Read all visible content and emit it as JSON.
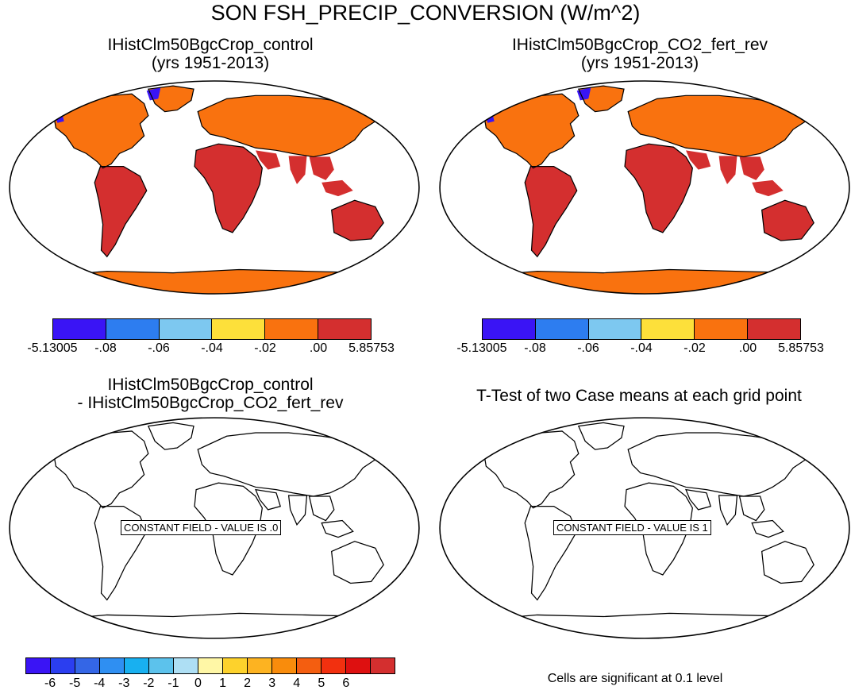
{
  "figure": {
    "title": "SON FSH_PRECIP_CONVERSION (W/m^2)"
  },
  "panels": [
    {
      "title_line1": "IHistClm50BgcCrop_control",
      "title_line2": "(yrs 1951-2013)"
    },
    {
      "title_line1": "IHistClm50BgcCrop_CO2_fert_rev",
      "title_line2": "(yrs 1951-2013)"
    },
    {
      "title_line1": "IHistClm50BgcCrop_control",
      "title_line2": "- IHistClm50BgcCrop_CO2_fert_rev",
      "overlay": "CONSTANT FIELD - VALUE IS .0"
    },
    {
      "title_line1": "T-Test of two Case means at each grid point",
      "title_line2": "",
      "overlay": "CONSTANT FIELD - VALUE IS 1"
    }
  ],
  "colorbar_case": {
    "colors": [
      "#3a14f5",
      "#2d7df0",
      "#7dc8f0",
      "#fde03a",
      "#f9720f",
      "#d42f2f"
    ],
    "labels": [
      "-5.13005",
      "-.08",
      "-.06",
      "-.04",
      "-.02",
      ".00",
      "5.85753"
    ]
  },
  "colorbar_diff": {
    "colors": [
      "#3a14f5",
      "#2b3ef0",
      "#3466e6",
      "#2f8ff2",
      "#18b0f0",
      "#5cc2ec",
      "#aedff4",
      "#fff7a6",
      "#fdd22c",
      "#fdb321",
      "#f98c0c",
      "#f45e10",
      "#f2300f",
      "#de1010",
      "#d42f2f"
    ],
    "labels": [
      "-6",
      "-5",
      "-4",
      "-3",
      "-2",
      "-1",
      "0",
      "1",
      "2",
      "3",
      "4",
      "5",
      "6"
    ]
  },
  "notes": {
    "significance": "Cells are significant at 0.1 level"
  },
  "map_colors": {
    "ocean": "#ffffff",
    "land_high_lat": "#f9720f",
    "land_tropics": "#d42f2f",
    "ice_low": "#3a14f5",
    "outline": "#000000"
  }
}
